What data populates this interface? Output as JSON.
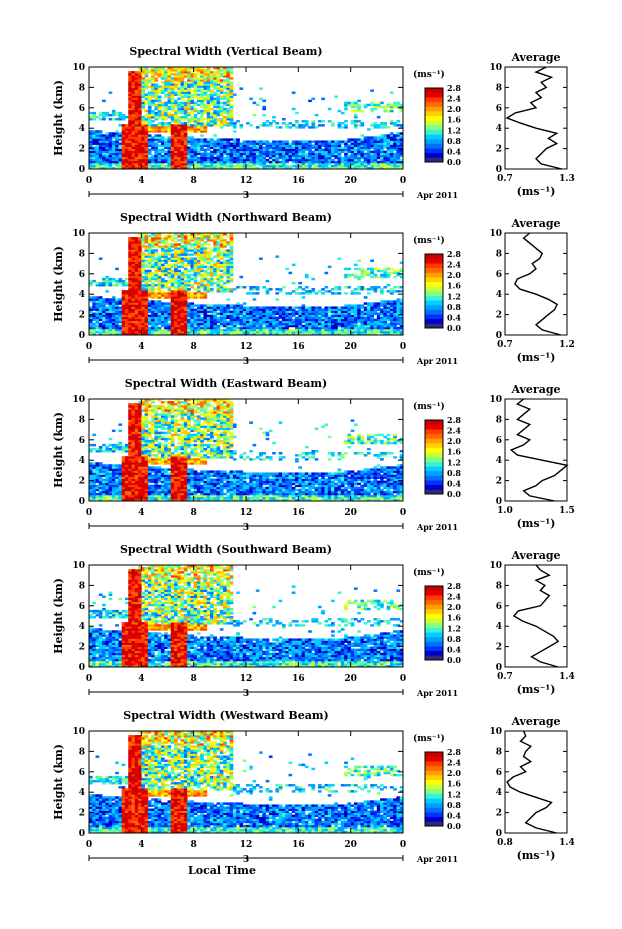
{
  "colorbar": {
    "unit": "(ms⁻¹)",
    "ticks": [
      "0.0",
      "0.4",
      "0.8",
      "1.2",
      "1.6",
      "2.0",
      "2.4",
      "2.8"
    ],
    "colors": [
      "#2a2a7a",
      "#0000c8",
      "#0032ff",
      "#0070ff",
      "#00a0ff",
      "#00d0ff",
      "#3cf2d2",
      "#80ff80",
      "#c8ff3c",
      "#ffff00",
      "#ffd000",
      "#ffa000",
      "#ff6a00",
      "#ff3c00",
      "#e80000",
      "#c80000"
    ]
  },
  "x_axis": {
    "ticks": [
      "0",
      "4",
      "8",
      "12",
      "16",
      "20",
      "0"
    ],
    "day": "3",
    "month_year": "Apr 2011",
    "label": "Local Time"
  },
  "y_axis": {
    "label": "Height (km)",
    "ticks": [
      "0",
      "2",
      "4",
      "6",
      "8",
      "10"
    ]
  },
  "average_panel": {
    "title": "Average",
    "unit": "(ms⁻¹)"
  },
  "chart_data": [
    {
      "type": "heatmap",
      "title": "Spectral Width (Vertical Beam)",
      "xlabel": "",
      "ylabel": "Height (km)",
      "xlim": [
        0,
        24
      ],
      "ylim": [
        0,
        10
      ],
      "colorbar_range": [
        0,
        2.8
      ],
      "average_profile": {
        "xlim": [
          0.7,
          1.3
        ],
        "xtick_labels": [
          "0.7",
          "1.3"
        ],
        "height": [
          0,
          0.5,
          1,
          1.5,
          2,
          2.5,
          3,
          3.5,
          4,
          4.5,
          5,
          5.5,
          6,
          6.5,
          7,
          7.5,
          8,
          8.5,
          9,
          9.5,
          10
        ],
        "values": [
          1.25,
          1.05,
          1.0,
          1.05,
          1.1,
          1.2,
          1.12,
          1.2,
          1.0,
          0.85,
          0.72,
          0.8,
          1.0,
          0.95,
          1.05,
          1.0,
          1.1,
          1.05,
          1.15,
          1.0,
          1.1
        ]
      }
    },
    {
      "type": "heatmap",
      "title": "Spectral Width (Northward Beam)",
      "xlabel": "",
      "ylabel": "Height (km)",
      "xlim": [
        0,
        24
      ],
      "ylim": [
        0,
        10
      ],
      "colorbar_range": [
        0,
        2.8
      ],
      "average_profile": {
        "xlim": [
          0.7,
          1.2
        ],
        "xtick_labels": [
          "0.7",
          "1.2"
        ],
        "height": [
          0,
          0.5,
          1,
          1.5,
          2,
          2.5,
          3,
          3.5,
          4,
          4.5,
          5,
          5.5,
          6,
          6.5,
          7,
          7.5,
          8,
          8.5,
          9,
          9.5,
          10
        ],
        "values": [
          1.15,
          1.0,
          0.95,
          1.0,
          1.05,
          1.1,
          1.12,
          1.05,
          0.95,
          0.82,
          0.78,
          0.8,
          0.9,
          0.95,
          0.92,
          0.98,
          1.0,
          0.95,
          0.9,
          0.85,
          0.9
        ]
      }
    },
    {
      "type": "heatmap",
      "title": "Spectral Width (Eastward Beam)",
      "xlabel": "",
      "ylabel": "Height (km)",
      "xlim": [
        0,
        24
      ],
      "ylim": [
        0,
        10
      ],
      "colorbar_range": [
        0,
        2.8
      ],
      "average_profile": {
        "xlim": [
          1.0,
          1.5
        ],
        "xtick_labels": [
          "1.0",
          "1.5"
        ],
        "height": [
          0,
          0.5,
          1,
          1.5,
          2,
          2.5,
          3,
          3.5,
          4,
          4.5,
          5,
          5.5,
          6,
          6.5,
          7,
          7.5,
          8,
          8.5,
          9,
          9.5,
          10
        ],
        "values": [
          1.4,
          1.2,
          1.15,
          1.25,
          1.3,
          1.4,
          1.45,
          1.5,
          1.3,
          1.1,
          1.05,
          1.15,
          1.2,
          1.1,
          1.15,
          1.2,
          1.1,
          1.15,
          1.2,
          1.1,
          1.15
        ]
      }
    },
    {
      "type": "heatmap",
      "title": "Spectral Width (Southward Beam)",
      "xlabel": "",
      "ylabel": "Height (km)",
      "xlim": [
        0,
        24
      ],
      "ylim": [
        0,
        10
      ],
      "colorbar_range": [
        0,
        2.8
      ],
      "average_profile": {
        "xlim": [
          0.7,
          1.4
        ],
        "xtick_labels": [
          "0.7",
          "1.4"
        ],
        "height": [
          0,
          0.5,
          1,
          1.5,
          2,
          2.5,
          3,
          3.5,
          4,
          4.5,
          5,
          5.5,
          6,
          6.5,
          7,
          7.5,
          8,
          8.5,
          9,
          9.5,
          10
        ],
        "values": [
          1.3,
          1.1,
          1.0,
          1.1,
          1.2,
          1.3,
          1.25,
          1.15,
          1.05,
          0.9,
          0.8,
          0.85,
          1.1,
          1.15,
          1.2,
          1.1,
          1.15,
          1.05,
          1.2,
          1.1,
          1.05
        ]
      }
    },
    {
      "type": "heatmap",
      "title": "Spectral Width (Westward Beam)",
      "xlabel": "Local Time",
      "ylabel": "Height (km)",
      "xlim": [
        0,
        24
      ],
      "ylim": [
        0,
        10
      ],
      "colorbar_range": [
        0,
        2.8
      ],
      "average_profile": {
        "xlim": [
          0.8,
          1.4
        ],
        "xtick_labels": [
          "0.8",
          "1.4"
        ],
        "height": [
          0,
          0.5,
          1,
          1.5,
          2,
          2.5,
          3,
          3.5,
          4,
          4.5,
          5,
          5.5,
          6,
          6.5,
          7,
          7.5,
          8,
          8.5,
          9,
          9.5,
          10
        ],
        "values": [
          1.3,
          1.1,
          1.0,
          1.05,
          1.1,
          1.2,
          1.25,
          1.1,
          0.95,
          0.85,
          0.82,
          0.88,
          1.0,
          0.95,
          1.05,
          0.98,
          1.0,
          1.05,
          0.95,
          1.0,
          0.98
        ]
      }
    }
  ]
}
